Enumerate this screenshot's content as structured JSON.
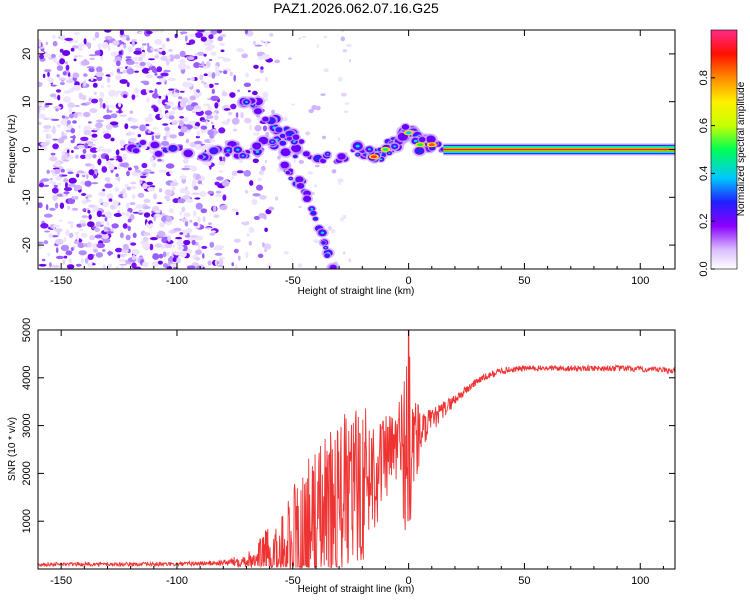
{
  "title": "PAZ1.2026.062.07.16.G25",
  "chart_data": [
    {
      "type": "heatmap",
      "xlabel": "Height of straight line (km)",
      "ylabel": "Frequency (Hz)",
      "xlim": [
        -160,
        115
      ],
      "ylim": [
        -25,
        25
      ],
      "x_ticks": [
        "-150",
        "-100",
        "-50",
        "0",
        "50",
        "100"
      ],
      "x_tick_values": [
        -150,
        -100,
        -50,
        0,
        50,
        100
      ],
      "y_ticks": [
        "-20",
        "-10",
        "0",
        "10",
        "20"
      ],
      "y_tick_values": [
        -20,
        -10,
        0,
        10,
        20
      ],
      "features": {
        "noise_region_x": [
          -160,
          -65
        ],
        "ridge": [
          [
            -125,
            0
          ],
          [
            -110,
            0.5
          ],
          [
            -95,
            -0.5
          ],
          [
            -80,
            0
          ],
          [
            -70,
            0
          ],
          [
            -60,
            1
          ],
          [
            -50,
            0
          ],
          [
            -40,
            -1.5
          ],
          [
            -30,
            -1.5
          ],
          [
            -20,
            0.5
          ],
          [
            -15,
            -1.5
          ],
          [
            -10,
            0
          ],
          [
            -5,
            2
          ],
          [
            0,
            4
          ],
          [
            5,
            1
          ],
          [
            10,
            1
          ],
          [
            15,
            0
          ],
          [
            115,
            0
          ]
        ],
        "branch_up": [
          [
            -72,
            10
          ],
          [
            -65,
            9
          ],
          [
            -55,
            4
          ],
          [
            -45,
            2
          ]
        ],
        "branch_down": [
          [
            -55,
            -3
          ],
          [
            -45,
            -8
          ],
          [
            -38,
            -17
          ],
          [
            -32,
            -26
          ]
        ],
        "clean_line_start": 15
      },
      "colorbar": {
        "label": "Normalized spectral amplitude",
        "ticks": [
          "0.0",
          "0.2",
          "0.4",
          "0.6",
          "0.8"
        ],
        "tick_values": [
          0,
          0.2,
          0.4,
          0.6,
          0.8
        ],
        "range": [
          0,
          1
        ],
        "colormap": [
          "#ffffff",
          "#c8a8ff",
          "#7a00ff",
          "#2020ff",
          "#00d8ff",
          "#00ff40",
          "#fff000",
          "#ff8000",
          "#ff0000",
          "#ff2a8a"
        ]
      }
    },
    {
      "type": "line",
      "xlabel": "Height of straight line (km)",
      "ylabel": "SNR (10 * v/v)",
      "xlim": [
        -160,
        115
      ],
      "ylim": [
        0,
        5000
      ],
      "x_ticks": [
        "-150",
        "-100",
        "-50",
        "0",
        "50",
        "100"
      ],
      "x_tick_values": [
        -150,
        -100,
        -50,
        0,
        50,
        100
      ],
      "y_ticks": [
        "1000",
        "2000",
        "3000",
        "4000",
        "5000"
      ],
      "y_tick_values": [
        1000,
        2000,
        3000,
        4000,
        5000
      ],
      "line_color": "#ee3333",
      "envelope": {
        "x": [
          -160,
          -100,
          -80,
          -70,
          -60,
          -50,
          -40,
          -30,
          -20,
          -10,
          -5,
          0,
          5,
          10,
          20,
          30,
          40,
          50,
          70,
          90,
          115
        ],
        "baseline": [
          100,
          100,
          130,
          180,
          300,
          500,
          900,
          1400,
          1800,
          2300,
          2600,
          2600,
          2800,
          3100,
          3550,
          3950,
          4150,
          4200,
          4200,
          4200,
          4150
        ],
        "amplitude": [
          40,
          40,
          60,
          150,
          600,
          1300,
          1700,
          1800,
          1700,
          900,
          800,
          2300,
          500,
          250,
          120,
          80,
          70,
          60,
          60,
          60,
          60
        ]
      }
    }
  ]
}
